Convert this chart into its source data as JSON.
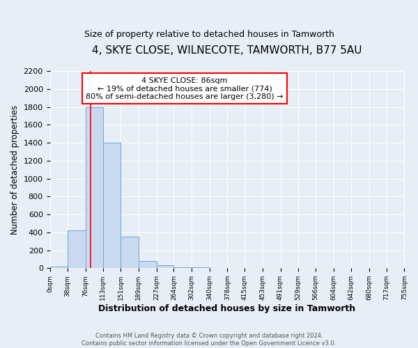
{
  "title": "4, SKYE CLOSE, WILNECOTE, TAMWORTH, B77 5AU",
  "subtitle": "Size of property relative to detached houses in Tamworth",
  "xlabel": "Distribution of detached houses by size in Tamworth",
  "ylabel": "Number of detached properties",
  "bin_edges": [
    0,
    38,
    76,
    113,
    151,
    189,
    227,
    264,
    302,
    340,
    378,
    415,
    453,
    491,
    529,
    566,
    604,
    642,
    680,
    717,
    755
  ],
  "bin_labels": [
    "0sqm",
    "38sqm",
    "76sqm",
    "113sqm",
    "151sqm",
    "189sqm",
    "227sqm",
    "264sqm",
    "302sqm",
    "340sqm",
    "378sqm",
    "415sqm",
    "453sqm",
    "491sqm",
    "529sqm",
    "566sqm",
    "604sqm",
    "642sqm",
    "680sqm",
    "717sqm",
    "755sqm"
  ],
  "bar_heights": [
    20,
    420,
    1800,
    1400,
    350,
    80,
    30,
    10,
    10,
    5,
    5,
    5,
    5,
    5,
    5,
    5,
    5,
    5,
    5,
    5
  ],
  "bar_color": "#c8d9f0",
  "bar_edge_color": "#6aaad4",
  "red_line_x": 86,
  "ylim": [
    0,
    2200
  ],
  "yticks": [
    0,
    200,
    400,
    600,
    800,
    1000,
    1200,
    1400,
    1600,
    1800,
    2000,
    2200
  ],
  "annotation_title": "4 SKYE CLOSE: 86sqm",
  "annotation_line1": "← 19% of detached houses are smaller (774)",
  "annotation_line2": "80% of semi-detached houses are larger (3,280) →",
  "footer_line1": "Contains HM Land Registry data © Crown copyright and database right 2024.",
  "footer_line2": "Contains public sector information licensed under the Open Government Licence v3.0.",
  "background_color": "#e8eef5",
  "plot_background_color": "#e8eef5",
  "title_fontsize": 11,
  "subtitle_fontsize": 9
}
